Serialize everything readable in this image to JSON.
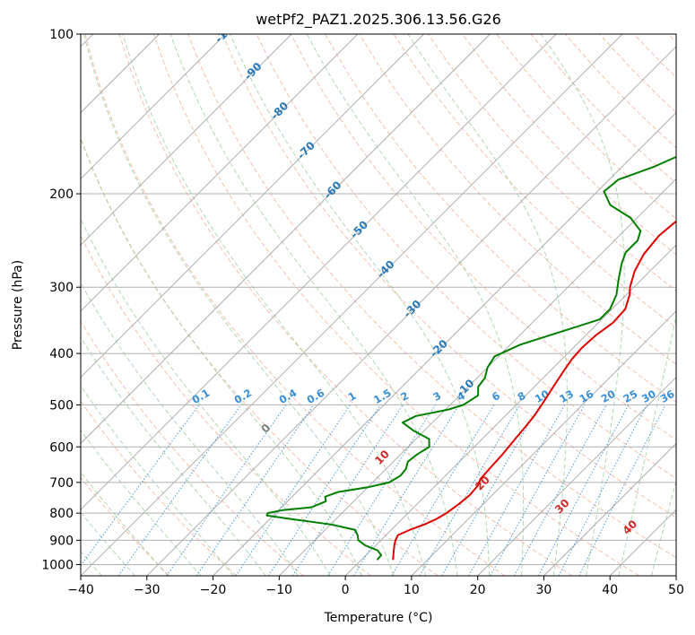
{
  "chart_data": {
    "type": "line",
    "subtype": "skew-t log-p",
    "title": "wetPf2_PAZ1.2025.306.13.56.G26",
    "xlabel": "Temperature (°C)",
    "ylabel": "Pressure (hPa)",
    "xlim": [
      -40,
      50
    ],
    "ylim": [
      1050,
      100
    ],
    "x_ticks": [
      "−40",
      "−30",
      "−20",
      "−10",
      "0",
      "10",
      "20",
      "30",
      "40",
      "50"
    ],
    "y_ticks": [
      "100",
      "200",
      "300",
      "400",
      "500",
      "600",
      "700",
      "800",
      "900",
      "1000"
    ],
    "isotherm_labels": [
      "-100",
      "-90",
      "-80",
      "-70",
      "-60",
      "-50",
      "-40",
      "-30",
      "-20",
      "-10"
    ],
    "mixing_ratio_labels": [
      "0.1",
      "0.2",
      "0.4",
      "0.6",
      "1",
      "1.5",
      "2",
      "3",
      "4",
      "6",
      "8",
      "10",
      "13",
      "16",
      "20",
      "25",
      "30",
      "36"
    ],
    "moist_adiabat_labels": [
      "0",
      "10",
      "20",
      "30",
      "40"
    ],
    "series": [
      {
        "name": "Temperature",
        "color": "#e00000",
        "points": [
          {
            "p": 980,
            "t": 4.8
          },
          {
            "p": 950,
            "t": 3.8
          },
          {
            "p": 920,
            "t": 2.8
          },
          {
            "p": 900,
            "t": 2.2
          },
          {
            "p": 880,
            "t": 1.8
          },
          {
            "p": 860,
            "t": 2.8
          },
          {
            "p": 840,
            "t": 4.2
          },
          {
            "p": 820,
            "t": 5.2
          },
          {
            "p": 800,
            "t": 5.8
          },
          {
            "p": 770,
            "t": 6.3
          },
          {
            "p": 740,
            "t": 6.6
          },
          {
            "p": 710,
            "t": 6.4
          },
          {
            "p": 690,
            "t": 5.8
          },
          {
            "p": 660,
            "t": 5.6
          },
          {
            "p": 620,
            "t": 5.4
          },
          {
            "p": 580,
            "t": 5.0
          },
          {
            "p": 550,
            "t": 4.7
          },
          {
            "p": 520,
            "t": 4.3
          },
          {
            "p": 490,
            "t": 3.6
          },
          {
            "p": 460,
            "t": 2.8
          },
          {
            "p": 430,
            "t": 2.0
          },
          {
            "p": 410,
            "t": 1.5
          },
          {
            "p": 390,
            "t": 1.3
          },
          {
            "p": 370,
            "t": 1.5
          },
          {
            "p": 350,
            "t": 2.2
          },
          {
            "p": 330,
            "t": 2.0
          },
          {
            "p": 310,
            "t": 0.5
          },
          {
            "p": 300,
            "t": -0.6
          },
          {
            "p": 280,
            "t": -2.3
          },
          {
            "p": 260,
            "t": -3.5
          },
          {
            "p": 240,
            "t": -4.0
          },
          {
            "p": 226,
            "t": -3.6
          },
          {
            "p": 218,
            "t": -2.0
          },
          {
            "p": 208,
            "t": 1.0
          },
          {
            "p": 198,
            "t": 4.0
          },
          {
            "p": 186,
            "t": 7.0
          },
          {
            "p": 170,
            "t": 9.0
          },
          {
            "p": 150,
            "t": 13.0
          },
          {
            "p": 130,
            "t": 18.0
          },
          {
            "p": 115,
            "t": 23.0
          },
          {
            "p": 105,
            "t": 27.0
          },
          {
            "p": 100,
            "t": 30.0
          }
        ]
      },
      {
        "name": "Dewpoint",
        "color": "#007f00",
        "points": [
          {
            "p": 980,
            "t": 2.4
          },
          {
            "p": 960,
            "t": 2.3
          },
          {
            "p": 940,
            "t": 1.0
          },
          {
            "p": 920,
            "t": -1.6
          },
          {
            "p": 900,
            "t": -3.4
          },
          {
            "p": 880,
            "t": -4.3
          },
          {
            "p": 860,
            "t": -5.5
          },
          {
            "p": 840,
            "t": -10.0
          },
          {
            "p": 820,
            "t": -17.0
          },
          {
            "p": 808,
            "t": -21.0
          },
          {
            "p": 800,
            "t": -21.2
          },
          {
            "p": 790,
            "t": -19.5
          },
          {
            "p": 780,
            "t": -15.5
          },
          {
            "p": 760,
            "t": -14.2
          },
          {
            "p": 745,
            "t": -15.0
          },
          {
            "p": 730,
            "t": -13.8
          },
          {
            "p": 715,
            "t": -10.0
          },
          {
            "p": 700,
            "t": -7.5
          },
          {
            "p": 680,
            "t": -6.8
          },
          {
            "p": 660,
            "t": -7.0
          },
          {
            "p": 640,
            "t": -7.8
          },
          {
            "p": 620,
            "t": -7.5
          },
          {
            "p": 600,
            "t": -6.8
          },
          {
            "p": 580,
            "t": -8.0
          },
          {
            "p": 560,
            "t": -11.5
          },
          {
            "p": 540,
            "t": -14.5
          },
          {
            "p": 525,
            "t": -13.5
          },
          {
            "p": 510,
            "t": -9.5
          },
          {
            "p": 500,
            "t": -8.0
          },
          {
            "p": 480,
            "t": -7.2
          },
          {
            "p": 462,
            "t": -8.5
          },
          {
            "p": 445,
            "t": -8.8
          },
          {
            "p": 425,
            "t": -10.0
          },
          {
            "p": 405,
            "t": -10.6
          },
          {
            "p": 385,
            "t": -8.5
          },
          {
            "p": 365,
            "t": -4.5
          },
          {
            "p": 345,
            "t": -0.3
          },
          {
            "p": 330,
            "t": -0.3
          },
          {
            "p": 310,
            "t": -1.5
          },
          {
            "p": 290,
            "t": -3.5
          },
          {
            "p": 270,
            "t": -5.5
          },
          {
            "p": 258,
            "t": -6.5
          },
          {
            "p": 245,
            "t": -6.5
          },
          {
            "p": 235,
            "t": -7.5
          },
          {
            "p": 222,
            "t": -11.0
          },
          {
            "p": 210,
            "t": -16.0
          },
          {
            "p": 198,
            "t": -19.0
          },
          {
            "p": 188,
            "t": -18.6
          },
          {
            "p": 178,
            "t": -15.2
          },
          {
            "p": 170,
            "t": -13.2
          },
          {
            "p": 160,
            "t": -13.5
          },
          {
            "p": 152,
            "t": -14.5
          },
          {
            "p": 145,
            "t": -14.0
          },
          {
            "p": 135,
            "t": -10.0
          },
          {
            "p": 125,
            "t": -6.0
          },
          {
            "p": 115,
            "t": -2.0
          },
          {
            "p": 108,
            "t": -0.8
          },
          {
            "p": 102,
            "t": -0.6
          },
          {
            "p": 100,
            "t": -0.5
          }
        ]
      }
    ]
  }
}
